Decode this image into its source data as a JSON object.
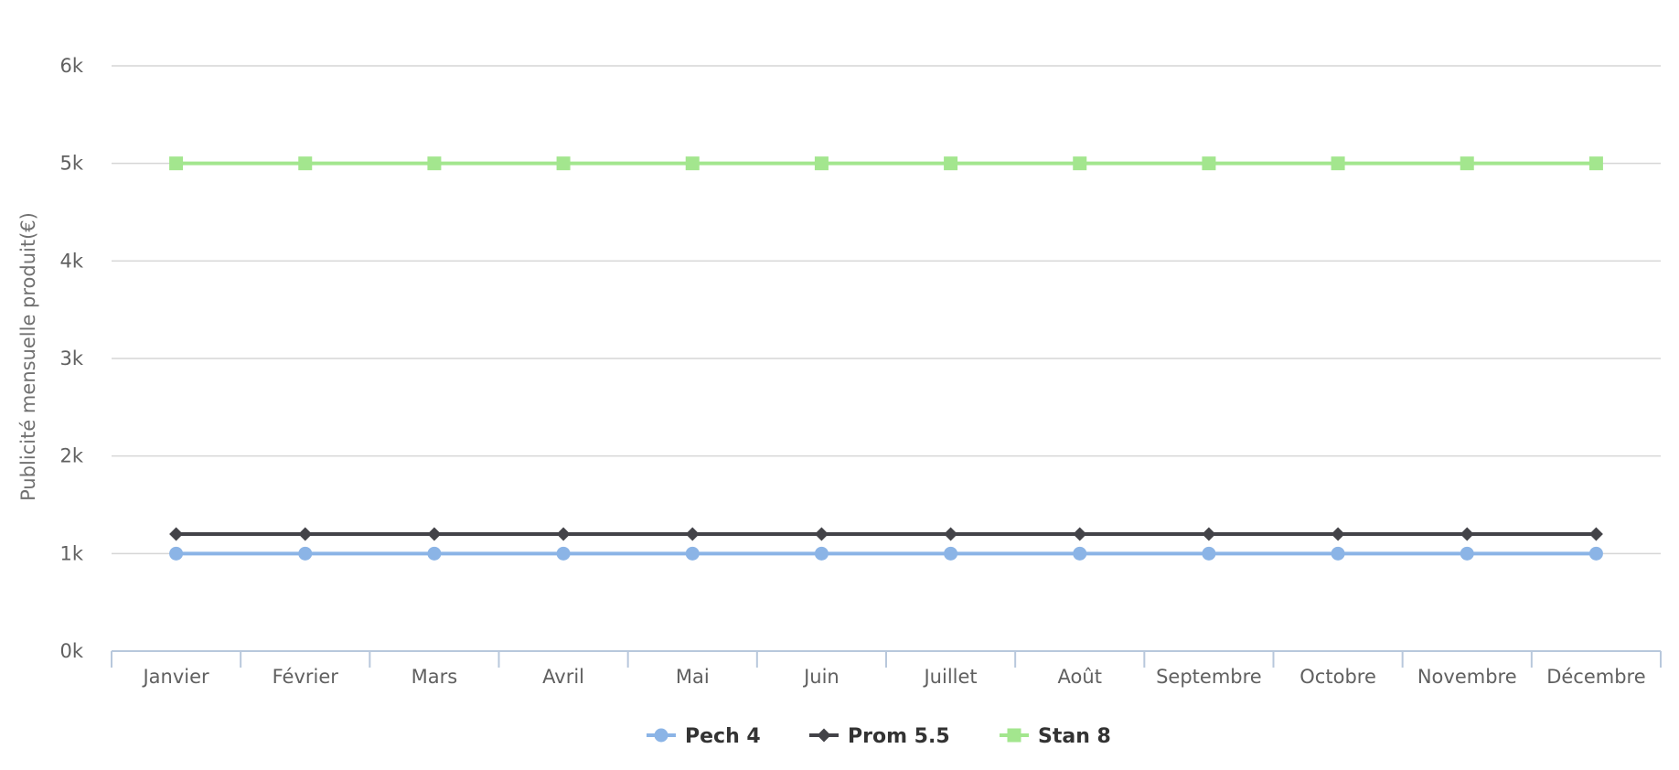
{
  "chart_data": {
    "type": "line",
    "ylabel": "Publicité mensuelle produit(€)",
    "xlabel": "",
    "categories": [
      "Janvier",
      "Février",
      "Mars",
      "Avril",
      "Mai",
      "Juin",
      "Juillet",
      "Août",
      "Septembre",
      "Octobre",
      "Novembre",
      "Décembre"
    ],
    "ylim": [
      0,
      6000
    ],
    "yticks": [
      0,
      1000,
      2000,
      3000,
      4000,
      5000,
      6000
    ],
    "ytick_labels": [
      "0k",
      "1k",
      "2k",
      "3k",
      "4k",
      "5k",
      "6k"
    ],
    "grid": true,
    "legend": "bottom-center",
    "series": [
      {
        "name": "Pech 4",
        "color": "#8bb4e6",
        "marker": "circle",
        "values": [
          1000,
          1000,
          1000,
          1000,
          1000,
          1000,
          1000,
          1000,
          1000,
          1000,
          1000,
          1000
        ]
      },
      {
        "name": "Prom 5.5",
        "color": "#434348",
        "marker": "diamond",
        "values": [
          1200,
          1200,
          1200,
          1200,
          1200,
          1200,
          1200,
          1200,
          1200,
          1200,
          1200,
          1200
        ]
      },
      {
        "name": "Stan 8",
        "color": "#a3e68e",
        "marker": "square",
        "values": [
          5000,
          5000,
          5000,
          5000,
          5000,
          5000,
          5000,
          5000,
          5000,
          5000,
          5000,
          5000
        ]
      }
    ]
  }
}
